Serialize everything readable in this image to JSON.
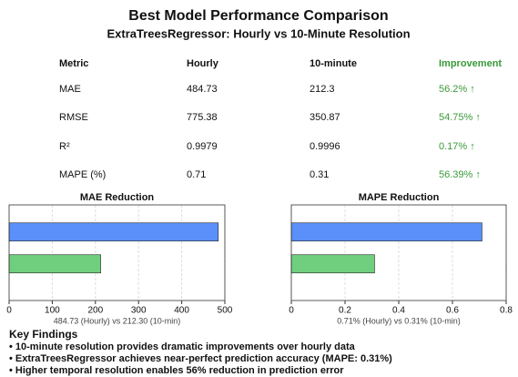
{
  "title": "Best Model Performance Comparison",
  "subtitle": "ExtraTreesRegressor: Hourly vs 10-Minute Resolution",
  "table": {
    "header": [
      "Metric",
      "Hourly",
      "10-minute",
      "Improvement"
    ],
    "rows": [
      [
        "MAE",
        "484.73",
        "212.3",
        "56.2% ↑"
      ],
      [
        "RMSE",
        "775.38",
        "350.87",
        "54.75% ↑"
      ],
      [
        "R²",
        "0.9979",
        "0.9996",
        "0.17% ↑"
      ],
      [
        "MAPE (%)",
        "0.71",
        "0.31",
        "56.39% ↑"
      ]
    ]
  },
  "chart_data": [
    {
      "type": "barh",
      "title": "MAE Reduction",
      "categories": [
        null,
        null
      ],
      "values": [
        484.73,
        212.3
      ],
      "colors": [
        "#5b8ff9",
        "#6fcf7f"
      ],
      "xlim": [
        0,
        500
      ],
      "xticks": [
        0,
        100,
        200,
        300,
        400,
        500
      ],
      "xlabel": "484.73 (Hourly) vs 212.30 (10-min)",
      "grid": true
    },
    {
      "type": "barh",
      "title": "MAPE Reduction",
      "categories": [
        null,
        null
      ],
      "values": [
        0.71,
        0.31
      ],
      "colors": [
        "#5b8ff9",
        "#6fcf7f"
      ],
      "xlim": [
        0,
        0.8
      ],
      "xticks": [
        0,
        0.2,
        0.4,
        0.6,
        0.8
      ],
      "xlabel": "0.71% (Hourly) vs 0.31% (10-min)",
      "grid": true
    }
  ],
  "findings": {
    "title": "Key Findings",
    "items": [
      "• 10-minute resolution provides dramatic improvements over hourly data",
      "• ExtraTreesRegressor achieves near-perfect prediction accuracy (MAPE: 0.31%)",
      "• Higher temporal resolution enables 56% reduction in prediction error"
    ]
  }
}
